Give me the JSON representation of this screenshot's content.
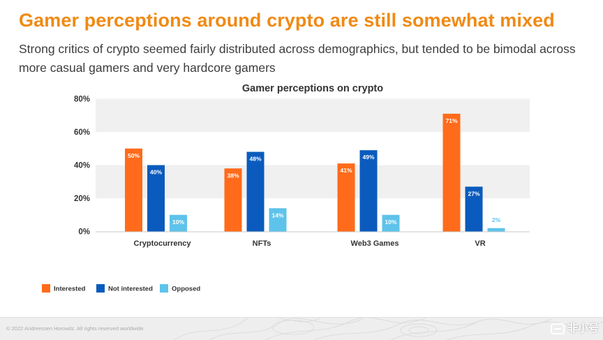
{
  "header": {
    "title": "Gamer perceptions around crypto are still somewhat mixed",
    "subtitle": "Strong critics of crypto seemed fairly distributed across demographics, but tended to be bimodal across more casual gamers and very hardcore gamers"
  },
  "chart_data": {
    "type": "bar",
    "title": "Gamer perceptions on crypto",
    "categories": [
      "Cryptocurrency",
      "NFTs",
      "Web3 Games",
      "VR"
    ],
    "series": [
      {
        "name": "Interested",
        "values": [
          50,
          38,
          41,
          71
        ],
        "labels": [
          "50%",
          "38%",
          "41%",
          "71%"
        ],
        "color": "#ff6b1a"
      },
      {
        "name": "Not interested",
        "values": [
          40,
          48,
          49,
          27
        ],
        "labels": [
          "40%",
          "48%",
          "49%",
          "27%"
        ],
        "color": "#0a5bbd"
      },
      {
        "name": "Opposed",
        "values": [
          10,
          14,
          10,
          2
        ],
        "labels": [
          "10%",
          "14%",
          "10%",
          "2%"
        ],
        "color": "#5ec3ea"
      }
    ],
    "ylim": [
      0,
      80
    ],
    "yticks": [
      0,
      20,
      40,
      60,
      80
    ],
    "ytick_labels": [
      "0%",
      "20%",
      "40%",
      "60%",
      "80%"
    ],
    "xlabel": "",
    "ylabel": "",
    "grid": "alternating horizontal bands",
    "legend_position": "bottom-left"
  },
  "footer": {
    "copyright": "© 2022 Andreessen Horowitz. All rights reserved worldwide.",
    "watermark": "非小号"
  }
}
